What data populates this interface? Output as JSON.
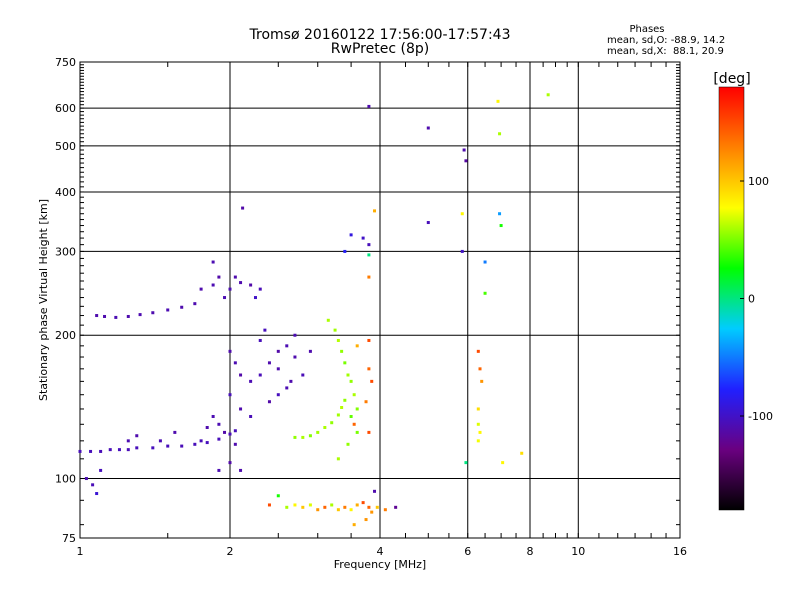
{
  "chart_data": {
    "type": "scatter",
    "title": "Tromsø 20160122 17:56:00-17:57:43",
    "subtitle": "RwPretec (8p)",
    "stats": {
      "heading": "Phases",
      "line1": "mean, sd,O: -88.9, 14.2",
      "line2": "mean, sd,X:  88.1, 20.9"
    },
    "xlabel": "Frequency [MHz]",
    "ylabel": "Stationary phase Virtual Height [km]",
    "xscale": "log",
    "yscale": "log",
    "xlim": [
      1,
      16
    ],
    "ylim": [
      75,
      750
    ],
    "xticks": [
      1,
      2,
      4,
      6,
      8,
      10,
      16
    ],
    "yticks": [
      75,
      100,
      200,
      300,
      400,
      500,
      600,
      750
    ],
    "grid_x": [
      1,
      2,
      4,
      6,
      8,
      10,
      16
    ],
    "grid_y": [
      100,
      200,
      300,
      400,
      500,
      600
    ],
    "colorbar": {
      "label": "[deg]",
      "range": [
        -180,
        180
      ],
      "ticks": [
        100,
        0,
        -100
      ],
      "colors": [
        "#000000",
        "#6a0080",
        "#2020ff",
        "#00ccff",
        "#00ff00",
        "#ffff00",
        "#ff8000",
        "#ff0000"
      ]
    },
    "series": [
      {
        "points": [
          [
            1.0,
            114,
            -105
          ],
          [
            1.05,
            114,
            -105
          ],
          [
            1.1,
            114,
            -106
          ],
          [
            1.15,
            115,
            -106
          ],
          [
            1.2,
            115,
            -104
          ],
          [
            1.25,
            115,
            -106
          ],
          [
            1.3,
            116,
            -105
          ],
          [
            1.4,
            116,
            -104
          ],
          [
            1.5,
            117,
            -105
          ],
          [
            1.6,
            117,
            -106
          ],
          [
            1.7,
            118,
            -105
          ],
          [
            1.8,
            119,
            -104
          ],
          [
            1.9,
            121,
            -105
          ],
          [
            2.0,
            124,
            -106
          ],
          [
            2.05,
            126,
            -105
          ],
          [
            1.08,
            220,
            -110
          ],
          [
            1.12,
            219,
            -110
          ],
          [
            1.18,
            218,
            -108
          ],
          [
            1.25,
            219,
            -110
          ],
          [
            1.32,
            221,
            -109
          ],
          [
            1.4,
            223,
            -110
          ],
          [
            1.5,
            226,
            -108
          ],
          [
            1.6,
            229,
            -110
          ],
          [
            1.7,
            233,
            -109
          ],
          [
            1.03,
            100,
            -108
          ],
          [
            1.06,
            97,
            -106
          ],
          [
            1.1,
            104,
            -104
          ],
          [
            1.08,
            93,
            -95
          ]
        ]
      },
      {
        "points": [
          [
            1.75,
            250,
            -110
          ],
          [
            1.85,
            255,
            -108
          ],
          [
            1.9,
            265,
            -112
          ],
          [
            2.0,
            250,
            -108
          ],
          [
            2.1,
            258,
            -110
          ],
          [
            2.2,
            255,
            -112
          ],
          [
            2.3,
            250,
            -106
          ],
          [
            1.95,
            240,
            -108
          ],
          [
            2.05,
            265,
            -110
          ],
          [
            2.25,
            240,
            -100
          ],
          [
            2.12,
            370,
            -112
          ],
          [
            1.85,
            285,
            -108
          ]
        ]
      },
      {
        "points": [
          [
            2.0,
            185,
            -110
          ],
          [
            2.05,
            175,
            -108
          ],
          [
            2.1,
            165,
            -112
          ],
          [
            2.2,
            160,
            -108
          ],
          [
            2.3,
            165,
            -106
          ],
          [
            2.4,
            175,
            -110
          ],
          [
            2.5,
            185,
            -112
          ],
          [
            2.6,
            190,
            -108
          ],
          [
            2.7,
            180,
            -110
          ],
          [
            2.3,
            195,
            -105
          ],
          [
            2.5,
            170,
            -110
          ],
          [
            2.0,
            150,
            -105
          ],
          [
            2.1,
            140,
            -110
          ],
          [
            2.2,
            135,
            -106
          ],
          [
            2.4,
            145,
            -112
          ],
          [
            2.6,
            155,
            -108
          ],
          [
            2.8,
            165,
            -106
          ],
          [
            2.9,
            185,
            -110
          ],
          [
            2.7,
            200,
            -108
          ],
          [
            2.35,
            205,
            -104
          ],
          [
            1.9,
            130,
            -108
          ],
          [
            1.95,
            125,
            -112
          ],
          [
            2.05,
            118,
            -110
          ],
          [
            1.75,
            120,
            -106
          ],
          [
            1.8,
            128,
            -110
          ],
          [
            1.85,
            135,
            -108
          ],
          [
            1.55,
            125,
            -110
          ],
          [
            1.45,
            120,
            -108
          ],
          [
            1.3,
            123,
            -110
          ],
          [
            1.25,
            120,
            -108
          ],
          [
            2.0,
            108,
            -112
          ],
          [
            2.1,
            104,
            -110
          ],
          [
            1.9,
            104,
            -108
          ],
          [
            2.5,
            150,
            -104
          ],
          [
            2.65,
            160,
            -110
          ]
        ]
      },
      {
        "points": [
          [
            2.7,
            122,
            55
          ],
          [
            2.8,
            122,
            60
          ],
          [
            2.9,
            123,
            52
          ],
          [
            3.0,
            125,
            58
          ],
          [
            3.1,
            128,
            60
          ],
          [
            3.2,
            131,
            55
          ],
          [
            3.3,
            136,
            58
          ],
          [
            3.35,
            141,
            62
          ],
          [
            3.4,
            146,
            55
          ],
          [
            3.15,
            215,
            60
          ],
          [
            3.25,
            205,
            58
          ],
          [
            3.3,
            195,
            62
          ],
          [
            3.35,
            185,
            55
          ],
          [
            3.4,
            175,
            50
          ],
          [
            3.45,
            165,
            58
          ],
          [
            3.5,
            160,
            55
          ],
          [
            3.55,
            150,
            60
          ],
          [
            3.6,
            140,
            52
          ],
          [
            3.5,
            135,
            45
          ],
          [
            3.6,
            125,
            50
          ],
          [
            3.45,
            118,
            55
          ],
          [
            3.3,
            110,
            60
          ]
        ]
      },
      {
        "points": [
          [
            2.5,
            92,
            30
          ],
          [
            2.6,
            87,
            60
          ],
          [
            2.7,
            88,
            80
          ],
          [
            2.8,
            87,
            100
          ],
          [
            2.9,
            88,
            70
          ],
          [
            3.0,
            86,
            120
          ],
          [
            3.1,
            87,
            140
          ],
          [
            3.2,
            88,
            60
          ],
          [
            3.3,
            86,
            100
          ],
          [
            3.4,
            87,
            130
          ],
          [
            3.5,
            86,
            80
          ],
          [
            3.6,
            88,
            110
          ],
          [
            3.7,
            89,
            150
          ],
          [
            3.8,
            87,
            140
          ],
          [
            3.85,
            85,
            120
          ],
          [
            3.95,
            87,
            100
          ],
          [
            4.1,
            86,
            130
          ],
          [
            4.3,
            87,
            -120
          ],
          [
            3.9,
            94,
            -110
          ],
          [
            2.4,
            88,
            150
          ],
          [
            3.75,
            82,
            120
          ],
          [
            3.55,
            80,
            110
          ]
        ]
      },
      {
        "points": [
          [
            3.8,
            310,
            -105
          ],
          [
            3.8,
            295,
            0
          ],
          [
            3.8,
            265,
            130
          ],
          [
            3.9,
            365,
            110
          ],
          [
            3.7,
            320,
            -100
          ],
          [
            3.4,
            300,
            -80
          ],
          [
            3.5,
            325,
            -90
          ],
          [
            3.8,
            195,
            150
          ],
          [
            3.8,
            170,
            140
          ],
          [
            3.85,
            160,
            150
          ],
          [
            3.75,
            145,
            130
          ],
          [
            3.8,
            125,
            150
          ],
          [
            3.6,
            190,
            110
          ],
          [
            3.55,
            130,
            140
          ]
        ]
      },
      {
        "points": [
          [
            3.8,
            605,
            -110
          ],
          [
            5.0,
            545,
            -110
          ],
          [
            5.9,
            490,
            -110
          ],
          [
            5.95,
            465,
            -115
          ],
          [
            5.0,
            345,
            -105
          ],
          [
            5.85,
            360,
            80
          ],
          [
            5.85,
            300,
            -100
          ],
          [
            5.95,
            108,
            0
          ],
          [
            6.3,
            185,
            150
          ],
          [
            6.35,
            170,
            140
          ],
          [
            6.4,
            160,
            120
          ],
          [
            6.3,
            140,
            90
          ],
          [
            6.3,
            130,
            70
          ],
          [
            6.35,
            125,
            80
          ],
          [
            6.3,
            120,
            75
          ],
          [
            6.5,
            245,
            40
          ],
          [
            6.5,
            285,
            -50
          ],
          [
            6.9,
            620,
            80
          ],
          [
            6.95,
            530,
            60
          ],
          [
            6.95,
            360,
            -40
          ],
          [
            7.0,
            340,
            30
          ],
          [
            7.05,
            108,
            80
          ],
          [
            7.7,
            113,
            90
          ],
          [
            8.7,
            640,
            60
          ]
        ]
      }
    ]
  }
}
